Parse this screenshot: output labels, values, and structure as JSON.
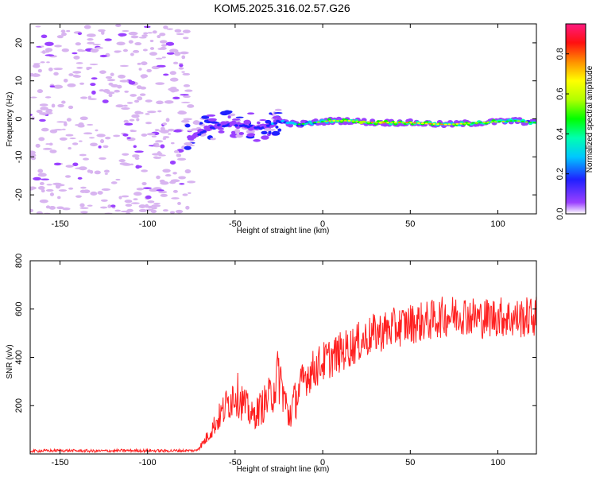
{
  "title": "KOM5.2025.316.02.57.G26",
  "chart_data": [
    {
      "type": "heatmap",
      "name": "spectrogram",
      "xlabel": "Height of straight line (km)",
      "ylabel": "Frequency (Hz)",
      "xlim": [
        -167,
        122
      ],
      "ylim": [
        -25,
        25
      ],
      "xticks": [
        -150,
        -100,
        -50,
        0,
        50,
        100
      ],
      "yticks": [
        -20,
        -10,
        0,
        10,
        20
      ],
      "grid": false,
      "colorbar": {
        "label": "Normalized spectral amplitude",
        "range": [
          0.0,
          0.95
        ],
        "ticks": [
          0.0,
          0.2,
          0.4,
          0.6,
          0.8
        ],
        "colormap": "rainbow",
        "colors": [
          "#d8b4f0",
          "#9a40ff",
          "#2020ff",
          "#00c8ff",
          "#00ffb0",
          "#00ff00",
          "#b0ff00",
          "#ffff00",
          "#ff9000",
          "#ff1010",
          "#ff1a80"
        ]
      },
      "signal_track": {
        "description_points_x": [
          -75,
          -65,
          -55,
          -45,
          -35,
          -25,
          -15,
          -5,
          5,
          15,
          30,
          50,
          70,
          90,
          110,
          120
        ],
        "frequency_hz": [
          -5,
          -2.5,
          -1.5,
          -1.5,
          -2.5,
          -0.5,
          -1.5,
          -1,
          -0.5,
          -0.5,
          -1,
          -1,
          -1.5,
          -1,
          -0.5,
          -1
        ],
        "amplitude": [
          0.25,
          0.3,
          0.3,
          0.35,
          0.35,
          0.4,
          0.45,
          0.5,
          0.7,
          0.75,
          0.8,
          0.75,
          0.7,
          0.7,
          0.6,
          0.5
        ]
      },
      "noise_region_x": [
        -167,
        -75
      ]
    },
    {
      "type": "line",
      "name": "snr",
      "xlabel": "Height of straight line (km)",
      "ylabel": "SNR (v/v)",
      "xlim": [
        -167,
        122
      ],
      "ylim": [
        0,
        800
      ],
      "xticks": [
        -150,
        -100,
        -50,
        0,
        50,
        100
      ],
      "yticks": [
        200,
        400,
        600,
        800
      ],
      "grid": false,
      "color": "#ff2020",
      "series": [
        {
          "name": "SNR",
          "x": [
            -167,
            -150,
            -130,
            -110,
            -90,
            -72,
            -68,
            -60,
            -50,
            -40,
            -30,
            -25,
            -20,
            -10,
            0,
            10,
            20,
            30,
            40,
            50,
            60,
            70,
            80,
            90,
            100,
            110,
            122
          ],
          "y": [
            12,
            14,
            12,
            14,
            13,
            14,
            40,
            120,
            220,
            130,
            200,
            280,
            150,
            320,
            380,
            420,
            460,
            500,
            520,
            540,
            550,
            570,
            580,
            560,
            570,
            560,
            570
          ]
        }
      ]
    }
  ]
}
